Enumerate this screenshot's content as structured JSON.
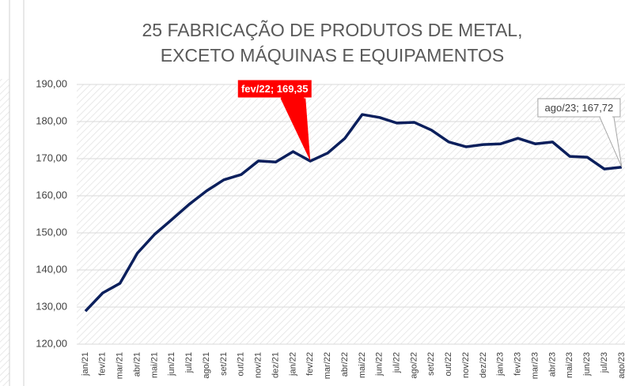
{
  "chart_data": {
    "type": "line",
    "title": "25 FABRICAÇÃO DE PRODUTOS DE METAL, EXCETO MÁQUINAS E EQUIPAMENTOS",
    "categories": [
      "jan/21",
      "fev/21",
      "mar/21",
      "abr/21",
      "mai/21",
      "jun/21",
      "jul/21",
      "ago/21",
      "set/21",
      "out/21",
      "nov/21",
      "dez/21",
      "jan/22",
      "fev/22",
      "mar/22",
      "abr/22",
      "mai/22",
      "jun/22",
      "jul/22",
      "ago/22",
      "set/22",
      "out/22",
      "nov/22",
      "dez/22",
      "jan/23",
      "fev/23",
      "mar/23",
      "abr/23",
      "mai/23",
      "jun/23",
      "jul/23",
      "ago/23"
    ],
    "values": [
      128.9,
      133.8,
      136.4,
      144.5,
      149.6,
      153.6,
      157.7,
      161.3,
      164.3,
      165.7,
      169.4,
      169.1,
      171.9,
      169.35,
      171.5,
      175.5,
      181.9,
      181.1,
      179.6,
      179.8,
      177.7,
      174.5,
      173.2,
      173.8,
      174.0,
      175.5,
      174.0,
      174.5,
      170.6,
      170.4,
      167.2,
      167.72
    ],
    "value_labels": [
      null,
      null,
      null,
      null,
      null,
      null,
      null,
      null,
      null,
      null,
      null,
      null,
      null,
      "fev/22; 169,35",
      null,
      null,
      null,
      null,
      null,
      null,
      null,
      null,
      null,
      null,
      null,
      null,
      null,
      null,
      null,
      null,
      null,
      "ago/23; 167,72"
    ],
    "color": "#0b1f5c",
    "ylim": [
      120,
      190
    ],
    "yticks": [
      {
        "value": 120,
        "label": "120,00"
      },
      {
        "value": 130,
        "label": "130,00"
      },
      {
        "value": 140,
        "label": "140,00"
      },
      {
        "value": 150,
        "label": "150,00"
      },
      {
        "value": 160,
        "label": "160,00"
      },
      {
        "value": 170,
        "label": "170,00"
      },
      {
        "value": 180,
        "label": "180,00"
      },
      {
        "value": 190,
        "label": "190,00"
      }
    ],
    "grid": true
  }
}
